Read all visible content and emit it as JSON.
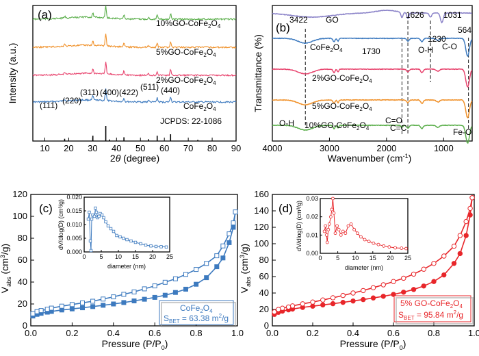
{
  "figure": {
    "panel_a": {
      "letter": "(a)",
      "ylabel": "Intensity (a.u.)",
      "xlabel_prefix": "2",
      "xlabel_theta": "θ",
      "xlabel_suffix": " (degree)",
      "jcpds_label": "JCPDS: 22-1086",
      "series_labels": [
        "10%GO-CoFe2O4",
        "5%GO-CoFe2O4",
        "2%GO-CoFe2O4",
        "CoFe2O4"
      ],
      "peak_labels": [
        "(111)",
        "(220)",
        "(311)",
        "(400)",
        "(422)",
        "(511)",
        "(440)"
      ]
    },
    "panel_b": {
      "letter": "(b)",
      "ylabel": "Transmittance (%)",
      "xlabel": "Wavenumber (cm",
      "xlabel_sup": "-1",
      "xlabel_end": ")",
      "series_labels": [
        "GO",
        "CoFe2O4",
        "2%GO-CoFe2O4",
        "5%GO-CoFe2O4",
        "10%GO-CoFe2O4"
      ],
      "band_labels": [
        "3422",
        "1730",
        "1626",
        "1230",
        "1031",
        "564",
        "O-H",
        "C-O",
        "C=O",
        "C=C",
        "O-H",
        "Fe-O"
      ]
    },
    "panel_c": {
      "letter": "(c)",
      "ylabel_main": "V",
      "ylabel_sub": "abs",
      "ylabel_unit": " (cm",
      "ylabel_sup": "3",
      "ylabel_end": "/g)",
      "xlabel": "Pressure (P/P",
      "xlabel_sub": "0",
      "xlabel_end": ")",
      "legend_name": "CoFe2O4",
      "sbet_text": "S",
      "sbet_sub": "BET",
      "sbet_value": " = 63.38 m",
      "sbet_sup": "2",
      "sbet_end": "/g",
      "inset_ylabel": "dV/dlog(D) (cm³/g)",
      "inset_xlabel": "diameter (nm)"
    },
    "panel_d": {
      "letter": "(d)",
      "legend_name": "5% GO-CoFe2O4",
      "sbet_value": " = 95.84 m",
      "inset_ylabel": "dV/dlog(D) (cm³/g)",
      "inset_xlabel": "diameter (nm)"
    }
  },
  "colors": {
    "blue": "#3d7abf",
    "red": "#e8262a",
    "green": "#5aae4a",
    "orange": "#f0912a",
    "pink": "#e8446e",
    "purple": "#8a82c8"
  },
  "chart_data": [
    {
      "type": "line",
      "panel": "a",
      "xlabel": "2θ (degree)",
      "ylabel": "Intensity (a.u.)",
      "xlim": [
        5,
        90
      ],
      "xticks": [
        10,
        20,
        30,
        40,
        50,
        60,
        70,
        80,
        90
      ],
      "series": [
        {
          "name": "CoFe2O4",
          "color": "#3d7abf",
          "peaks": [
            [
              18.3,
              0.3
            ],
            [
              30.1,
              0.7
            ],
            [
              35.5,
              2.0
            ],
            [
              43.1,
              0.6
            ],
            [
              53.4,
              0.3
            ],
            [
              57.0,
              0.65
            ],
            [
              62.6,
              0.9
            ]
          ]
        },
        {
          "name": "2%GO-CoFe2O4",
          "color": "#e8446e",
          "peaks": [
            [
              18.3,
              0.3
            ],
            [
              30.1,
              0.7
            ],
            [
              35.5,
              2.0
            ],
            [
              43.1,
              0.6
            ],
            [
              53.4,
              0.3
            ],
            [
              57.0,
              0.65
            ],
            [
              62.6,
              0.9
            ]
          ]
        },
        {
          "name": "5%GO-CoFe2O4",
          "color": "#f0912a",
          "peaks": [
            [
              18.3,
              0.3
            ],
            [
              30.1,
              0.7
            ],
            [
              35.5,
              2.0
            ],
            [
              43.1,
              0.6
            ],
            [
              53.4,
              0.3
            ],
            [
              57.0,
              0.65
            ],
            [
              62.6,
              0.9
            ]
          ]
        },
        {
          "name": "10%GO-CoFe2O4",
          "color": "#5aae4a",
          "peaks": [
            [
              18.3,
              0.3
            ],
            [
              30.1,
              0.7
            ],
            [
              35.5,
              2.0
            ],
            [
              43.1,
              0.6
            ],
            [
              53.4,
              0.3
            ],
            [
              57.0,
              0.65
            ],
            [
              62.6,
              0.9
            ]
          ]
        }
      ],
      "reference_sticks": [
        [
          18.3,
          0.15
        ],
        [
          30.1,
          0.35
        ],
        [
          35.5,
          1.0
        ],
        [
          37.1,
          0.1
        ],
        [
          43.1,
          0.25
        ],
        [
          53.4,
          0.12
        ],
        [
          57.0,
          0.35
        ],
        [
          62.6,
          0.45
        ],
        [
          74.0,
          0.08
        ]
      ],
      "reference_name": "JCPDS: 22-1086"
    },
    {
      "type": "line",
      "panel": "b",
      "xlabel": "Wavenumber (cm-1)",
      "ylabel": "Transmittance (%)",
      "xlim": [
        4000,
        500
      ],
      "xticks": [
        4000,
        3000,
        2000,
        1000
      ],
      "series": [
        {
          "name": "GO",
          "color": "#8a82c8"
        },
        {
          "name": "CoFe2O4",
          "color": "#3d7abf"
        },
        {
          "name": "2%GO-CoFe2O4",
          "color": "#e8446e"
        },
        {
          "name": "5%GO-CoFe2O4",
          "color": "#f0912a"
        },
        {
          "name": "10%GO-CoFe2O4",
          "color": "#5aae4a"
        }
      ],
      "dashed_lines": [
        3422,
        1730,
        1626,
        1230,
        564
      ]
    },
    {
      "type": "line",
      "panel": "c",
      "xlabel": "Pressure (P/P0)",
      "ylabel": "Vabs (cm3/g)",
      "xlim": [
        0,
        1.0
      ],
      "ylim": [
        0,
        120
      ],
      "xticks": [
        0.0,
        0.2,
        0.4,
        0.6,
        0.8,
        1.0
      ],
      "yticks": [
        0,
        20,
        40,
        60,
        80,
        100,
        120
      ],
      "series": [
        {
          "name": "adsorption",
          "x": [
            0.01,
            0.03,
            0.05,
            0.08,
            0.1,
            0.15,
            0.2,
            0.25,
            0.3,
            0.35,
            0.4,
            0.45,
            0.5,
            0.55,
            0.6,
            0.65,
            0.7,
            0.75,
            0.8,
            0.85,
            0.9,
            0.93,
            0.96,
            0.98,
            0.99
          ],
          "y": [
            9,
            10.5,
            11.5,
            12.5,
            13.2,
            14.5,
            15.5,
            16.5,
            17.6,
            18.8,
            20,
            21.3,
            22.8,
            24.3,
            26,
            28,
            30.5,
            33.5,
            38,
            44,
            54,
            62,
            76,
            90,
            104
          ]
        },
        {
          "name": "desorption",
          "x": [
            0.99,
            0.98,
            0.96,
            0.93,
            0.9,
            0.85,
            0.8,
            0.75,
            0.7,
            0.65,
            0.6,
            0.55,
            0.5,
            0.45,
            0.4,
            0.35,
            0.3,
            0.25,
            0.2,
            0.15,
            0.1,
            0.08,
            0.05,
            0.03,
            0.01
          ],
          "y": [
            104,
            94,
            84,
            73,
            64,
            57,
            51.5,
            47,
            43,
            39.8,
            36.5,
            33.8,
            31,
            28.8,
            26.5,
            24.5,
            22.5,
            21,
            19.5,
            18,
            16.2,
            15.2,
            14,
            13,
            11
          ]
        }
      ],
      "inset": {
        "xlabel": "diameter (nm)",
        "ylabel": "dV/dlog(D) (cm3/g)",
        "xlim": [
          0,
          25
        ],
        "ylim": [
          0,
          0.02
        ],
        "xticks": [
          0,
          5,
          10,
          15,
          20,
          25
        ],
        "yticks": [
          0.0,
          0.005,
          0.01,
          0.015,
          0.02
        ],
        "x": [
          1.2,
          1.5,
          1.8,
          2.0,
          2.2,
          2.5,
          3.0,
          3.3,
          3.6,
          3.9,
          4.3,
          4.7,
          5.2,
          5.7,
          6.3,
          7.0,
          7.8,
          8.6,
          9.5,
          10.5,
          11.5,
          12.5,
          13.7,
          15,
          16.5,
          18,
          19.5,
          21,
          22.5,
          24
        ],
        "y": [
          0.012,
          0.0145,
          0.004,
          0.0005,
          0.012,
          0.0135,
          0.013,
          0.016,
          0.0145,
          0.0125,
          0.013,
          0.014,
          0.0135,
          0.0125,
          0.011,
          0.0095,
          0.0085,
          0.0075,
          0.006,
          0.0055,
          0.005,
          0.0045,
          0.004,
          0.0035,
          0.003,
          0.0025,
          0.0022,
          0.002,
          0.0019,
          0.0018
        ]
      },
      "annotation": "SBET = 63.38 m2/g"
    },
    {
      "type": "line",
      "panel": "d",
      "xlabel": "Pressure (P/P0)",
      "ylabel": "Vabs (cm3/g)",
      "xlim": [
        0,
        1.0
      ],
      "ylim": [
        0,
        160
      ],
      "xticks": [
        0.0,
        0.2,
        0.4,
        0.6,
        0.8,
        1.0
      ],
      "yticks": [
        0,
        20,
        40,
        60,
        80,
        100,
        120,
        140,
        160
      ],
      "series": [
        {
          "name": "adsorption",
          "x": [
            0.01,
            0.03,
            0.05,
            0.08,
            0.1,
            0.15,
            0.2,
            0.25,
            0.3,
            0.35,
            0.4,
            0.45,
            0.5,
            0.55,
            0.6,
            0.65,
            0.7,
            0.75,
            0.8,
            0.85,
            0.9,
            0.93,
            0.96,
            0.98,
            0.99
          ],
          "y": [
            14,
            16.5,
            18,
            19.5,
            20.5,
            22.5,
            24,
            25.5,
            27,
            28.6,
            30.3,
            32,
            34,
            36,
            38.3,
            41,
            44.3,
            48.5,
            54,
            62,
            76,
            88,
            110,
            135,
            156
          ]
        },
        {
          "name": "desorption",
          "x": [
            0.99,
            0.98,
            0.96,
            0.93,
            0.9,
            0.85,
            0.8,
            0.75,
            0.7,
            0.65,
            0.6,
            0.55,
            0.5,
            0.45,
            0.4,
            0.35,
            0.3,
            0.25,
            0.2,
            0.15,
            0.1,
            0.08,
            0.05,
            0.03,
            0.01
          ],
          "y": [
            156,
            143,
            127,
            110,
            97,
            85,
            76,
            69,
            63,
            58,
            54,
            50,
            46.5,
            43,
            40,
            37,
            34.2,
            31.5,
            29,
            26.8,
            24.3,
            23,
            21.5,
            20,
            17
          ]
        }
      ],
      "inset": {
        "xlabel": "diameter (nm)",
        "ylabel": "dV/dlog(D) (cm3/g)",
        "xlim": [
          0,
          25
        ],
        "ylim": [
          0,
          0.03
        ],
        "xticks": [
          0,
          5,
          10,
          15,
          20,
          25
        ],
        "yticks": [
          0.0,
          0.01,
          0.02,
          0.03
        ],
        "x": [
          1.2,
          1.5,
          1.8,
          2.0,
          2.3,
          2.6,
          3.0,
          3.3,
          3.6,
          3.9,
          4.3,
          4.8,
          5.3,
          5.9,
          6.5,
          7.2,
          8.0,
          8.8,
          9.7,
          10.6,
          11.6,
          12.7,
          13.9,
          15.2,
          16.6,
          18.1,
          19.7,
          21.4,
          23.2,
          24.5
        ],
        "y": [
          0.012,
          0.015,
          0.01,
          0.006,
          0.013,
          0.016,
          0.02,
          0.024,
          0.03,
          0.022,
          0.011,
          0.015,
          0.013,
          0.01,
          0.012,
          0.011,
          0.015,
          0.016,
          0.013,
          0.011,
          0.009,
          0.0075,
          0.0065,
          0.0055,
          0.0048,
          0.004,
          0.0035,
          0.003,
          0.0028,
          0.0026
        ]
      },
      "annotation": "SBET = 95.84 m2/g"
    }
  ]
}
